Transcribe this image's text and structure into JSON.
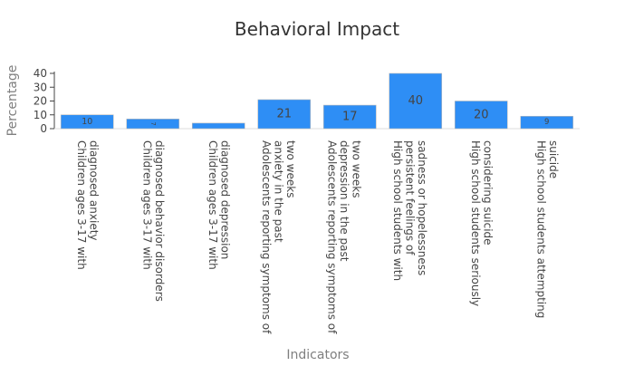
{
  "chart_data": {
    "type": "bar",
    "title": "Behavioral Impact",
    "xlabel": "Indicators",
    "ylabel": "Percentage",
    "ylim": [
      0,
      40
    ],
    "yticks": [
      0,
      10,
      20,
      30,
      40
    ],
    "grid": false,
    "bar_color": "#2e8ef5",
    "categories": [
      [
        "Children ages 3-17 with",
        "diagnosed anxiety"
      ],
      [
        "Children ages 3-17 with",
        "diagnosed behavior disorders"
      ],
      [
        "Children ages 3-17 with",
        "diagnosed depression"
      ],
      [
        "Adolescents reporting symptoms of",
        "anxiety in the past",
        "two weeks"
      ],
      [
        "Adolescents reporting symptoms of",
        "depression in the past",
        "two weeks"
      ],
      [
        "High school students with",
        "persistent feelings of",
        "sadness or hopelessness"
      ],
      [
        "High school students seriously",
        "considering suicide"
      ],
      [
        "High school students attempting",
        "suicide"
      ]
    ],
    "values": [
      10,
      7,
      4,
      21,
      17,
      40,
      20,
      9
    ],
    "data_labels": [
      "10",
      "7",
      "",
      "21",
      "17",
      "40",
      "20",
      "9"
    ]
  }
}
